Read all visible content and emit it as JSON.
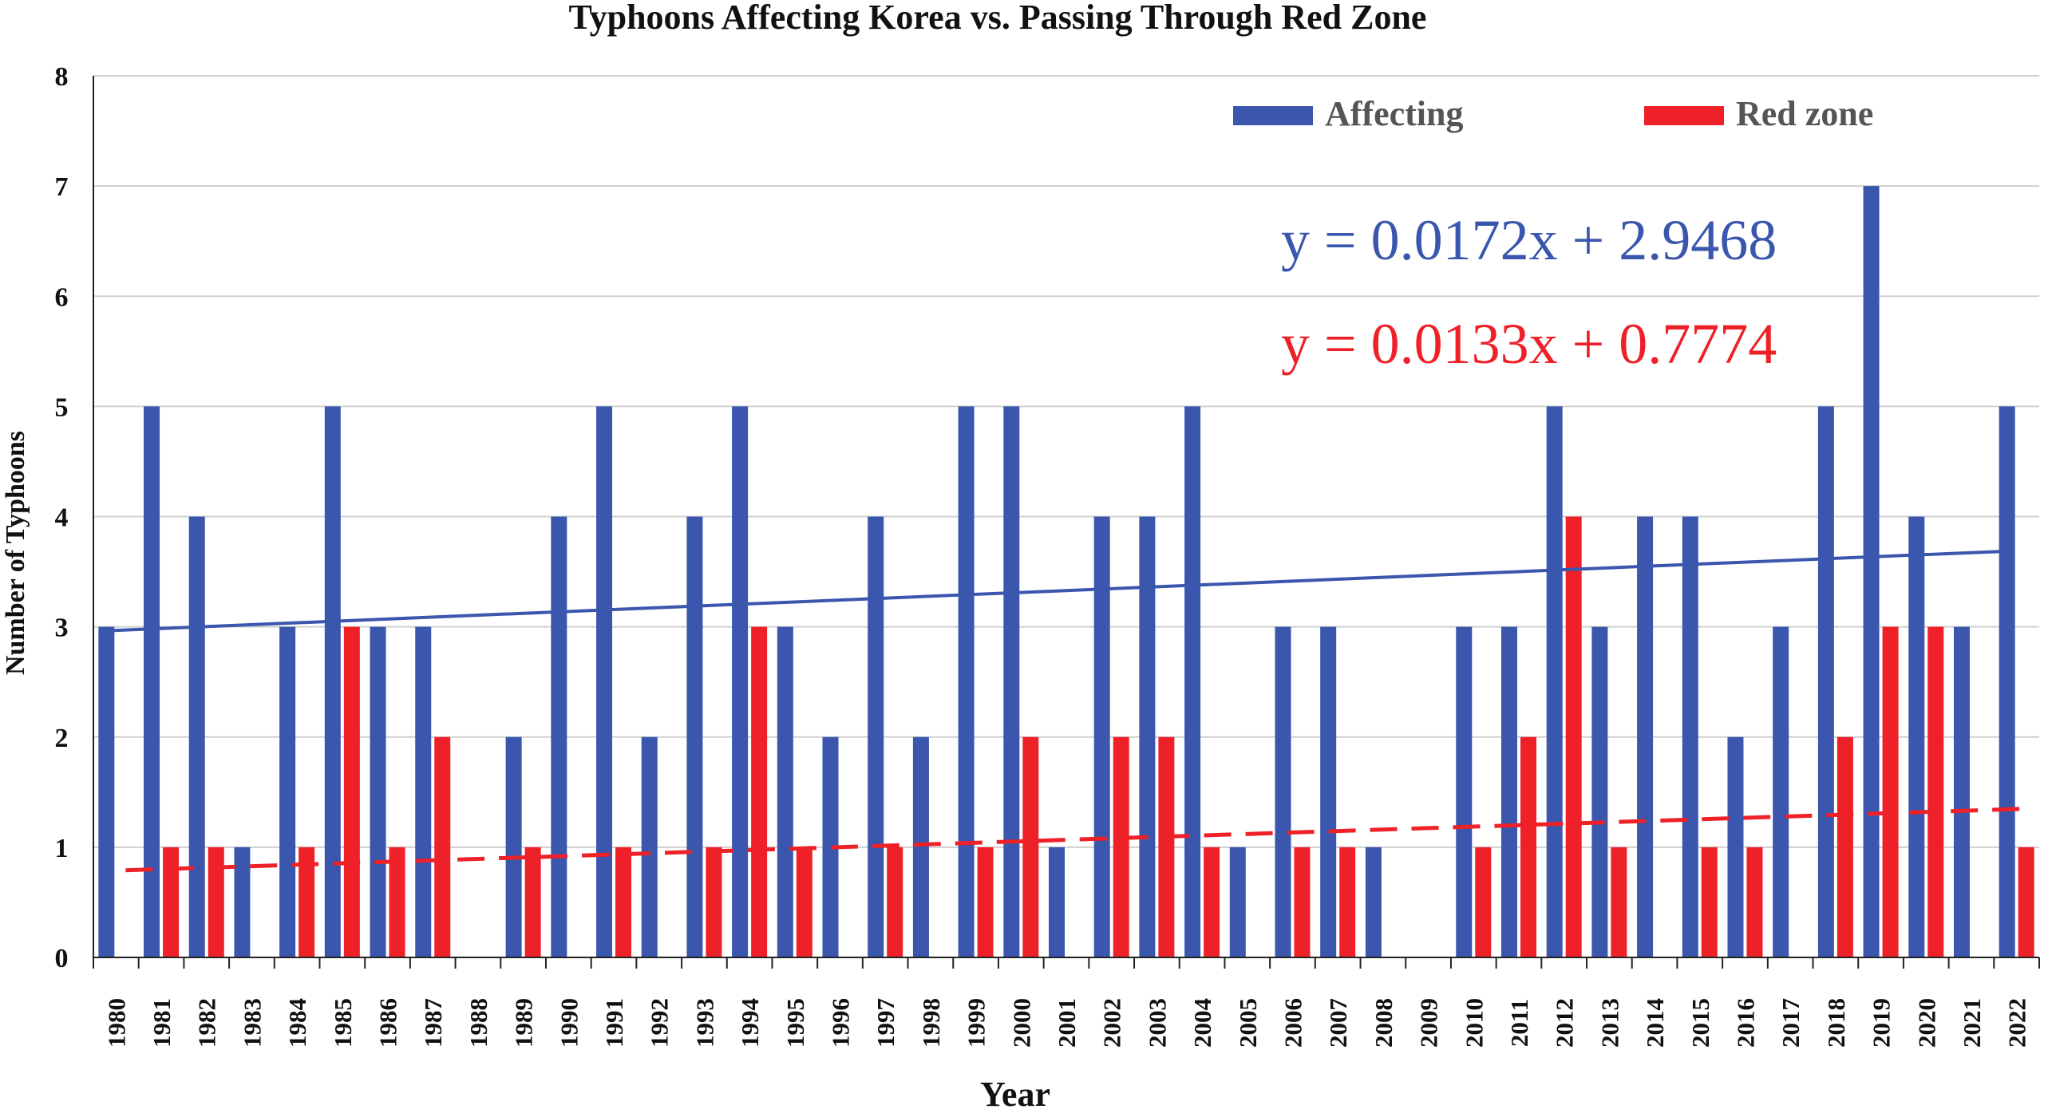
{
  "chart_data": {
    "type": "bar",
    "title": "Typhoons Affecting Korea vs. Passing Through Red Zone",
    "xlabel": "Year",
    "ylabel": "Number of Typhoons",
    "ylim": [
      0,
      8
    ],
    "yticks": [
      "0",
      "1",
      "2",
      "3",
      "4",
      "5",
      "6",
      "7",
      "8"
    ],
    "grid": "horizontal",
    "legend_position": "top-right",
    "categories": [
      "1980",
      "1981",
      "1982",
      "1983",
      "1984",
      "1985",
      "1986",
      "1987",
      "1988",
      "1989",
      "1990",
      "1991",
      "1992",
      "1993",
      "1994",
      "1995",
      "1996",
      "1997",
      "1998",
      "1999",
      "2000",
      "2001",
      "2002",
      "2003",
      "2004",
      "2005",
      "2006",
      "2007",
      "2008",
      "2009",
      "2010",
      "2011",
      "2012",
      "2013",
      "2014",
      "2015",
      "2016",
      "2017",
      "2018",
      "2019",
      "2020",
      "2021",
      "2022"
    ],
    "series": [
      {
        "name": "Affecting",
        "color": "#3a56ad",
        "values": [
          3,
          5,
          4,
          1,
          3,
          5,
          3,
          3,
          0,
          2,
          4,
          5,
          2,
          4,
          5,
          3,
          2,
          4,
          2,
          5,
          5,
          1,
          4,
          4,
          5,
          1,
          3,
          3,
          1,
          0,
          3,
          3,
          5,
          3,
          4,
          4,
          2,
          3,
          5,
          7,
          4,
          3,
          5
        ]
      },
      {
        "name": "Red zone",
        "color": "#ee2028",
        "values": [
          0,
          1,
          1,
          0,
          1,
          3,
          1,
          2,
          0,
          1,
          0,
          1,
          0,
          1,
          3,
          1,
          0,
          1,
          0,
          1,
          2,
          0,
          2,
          2,
          1,
          0,
          1,
          1,
          0,
          0,
          1,
          2,
          4,
          1,
          0,
          1,
          1,
          0,
          2,
          3,
          3,
          0,
          1
        ]
      }
    ],
    "trendlines": [
      {
        "series": "Affecting",
        "slope": 0.0172,
        "intercept": 2.9468,
        "style": "solid",
        "color": "#3a56ad",
        "equation": "y = 0.0172x + 2.9468"
      },
      {
        "series": "Red zone",
        "slope": 0.0133,
        "intercept": 0.7774,
        "style": "dashed",
        "color": "#ee2028",
        "equation": "y = 0.0133x + 0.7774"
      }
    ]
  }
}
